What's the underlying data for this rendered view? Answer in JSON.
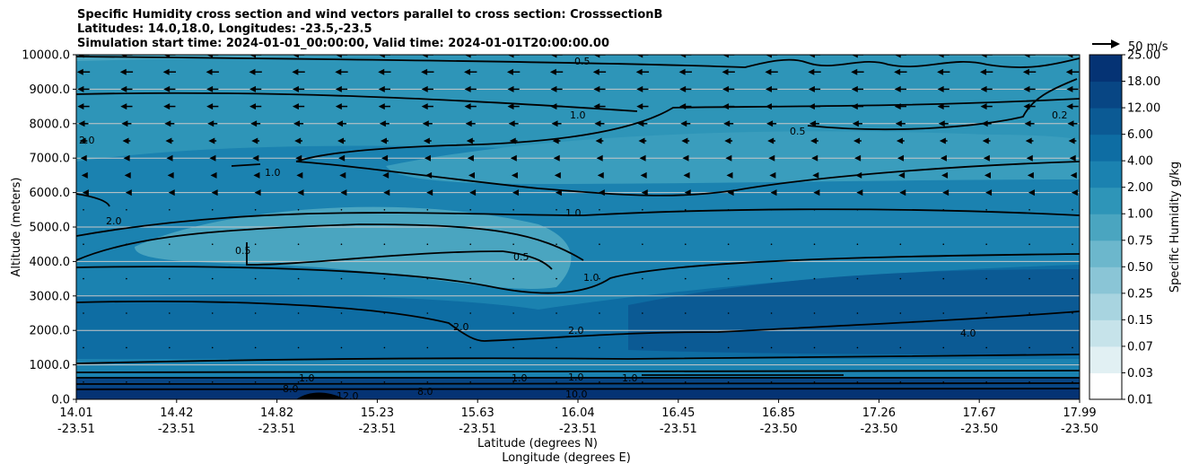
{
  "title_lines": [
    "Specific Humidity cross section and wind vectors parallel to cross section: CrosssectionB",
    "Latitudes: 14.0,18.0, Longitudes: -23.5,-23.5",
    "Simulation start time: 2024-01-01_00:00:00, Valid time: 2024-01-01T20:00:00.00"
  ],
  "chart_data": {
    "type": "heatmap",
    "ylabel": "Altitude (meters)",
    "xlabel_lat": "Latitude (degrees N)",
    "xlabel_lon": "Longitude (degrees E)",
    "ylim": [
      0,
      10000
    ],
    "grid": "horizontal",
    "y_ticks": [
      "0.0",
      "1000.0",
      "2000.0",
      "3000.0",
      "4000.0",
      "5000.0",
      "6000.0",
      "7000.0",
      "8000.0",
      "9000.0",
      "10000.0"
    ],
    "x_ticks": [
      {
        "lat": "14.01",
        "lon": "-23.51"
      },
      {
        "lat": "14.42",
        "lon": "-23.51"
      },
      {
        "lat": "14.82",
        "lon": "-23.51"
      },
      {
        "lat": "15.23",
        "lon": "-23.51"
      },
      {
        "lat": "15.63",
        "lon": "-23.51"
      },
      {
        "lat": "16.04",
        "lon": "-23.51"
      },
      {
        "lat": "16.45",
        "lon": "-23.51"
      },
      {
        "lat": "16.85",
        "lon": "-23.50"
      },
      {
        "lat": "17.26",
        "lon": "-23.50"
      },
      {
        "lat": "17.67",
        "lon": "-23.50"
      },
      {
        "lat": "17.99",
        "lon": "-23.50"
      }
    ],
    "colorbar": {
      "label": "Specific Humidity g/kg",
      "ticks": [
        "0.01",
        "0.03",
        "0.07",
        "0.15",
        "0.25",
        "0.50",
        "0.75",
        "1.00",
        "2.00",
        "4.00",
        "6.00",
        "12.00",
        "18.00",
        "25.00"
      ],
      "colors": [
        "#ffffff",
        "#e1f0f3",
        "#c6e3ea",
        "#a8d4e0",
        "#8ac5d6",
        "#6cb7cc",
        "#4aa5c0",
        "#2e95b8",
        "#1b82b0",
        "#0e6da3",
        "#0b5a94",
        "#084684",
        "#053374",
        "#02205f"
      ]
    },
    "contour_labels": [
      "0.5",
      "1.0",
      "2.0",
      "4.0",
      "8.0",
      "0.2",
      "10.0",
      "12.0"
    ],
    "quiver_key": "50 m/s",
    "wind_u_by_altitude": [
      {
        "z": 500,
        "u": 0
      },
      {
        "z": 1500,
        "u": 0
      },
      {
        "z": 2500,
        "u": 0
      },
      {
        "z": 3500,
        "u": 0
      },
      {
        "z": 4500,
        "u": 0
      },
      {
        "z": 5500,
        "u": 0
      },
      {
        "z": 6000,
        "u": -2
      },
      {
        "z": 6500,
        "u": -4
      },
      {
        "z": 7000,
        "u": -6
      },
      {
        "z": 7500,
        "u": -8
      },
      {
        "z": 8000,
        "u": -10
      },
      {
        "z": 8500,
        "u": -12
      },
      {
        "z": 9000,
        "u": -12
      },
      {
        "z": 9500,
        "u": -13
      },
      {
        "z": 10000,
        "u": -12
      }
    ]
  }
}
